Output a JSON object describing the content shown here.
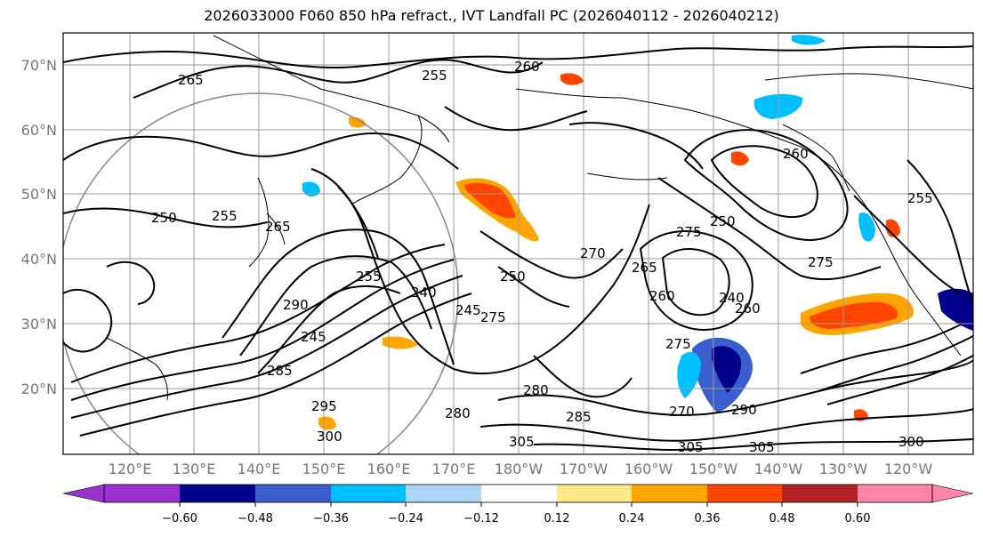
{
  "title": "2026033000 F060 850 hPa refract., IVT Landfall PC (2026040112 - 2026040212)",
  "latitude_labels": [
    "70°N",
    "60°N",
    "50°N",
    "40°N",
    "30°N",
    "20°N"
  ],
  "longitude_labels": [
    "120°E",
    "130°E",
    "140°E",
    "150°E",
    "160°E",
    "170°E",
    "180°W",
    "170°W",
    "160°W",
    "150°W",
    "140°W",
    "130°W",
    "120°W"
  ],
  "contour_labels": [
    "265",
    "255",
    "260",
    "250",
    "255",
    "265",
    "270",
    "250",
    "240",
    "255",
    "245",
    "275",
    "290",
    "260",
    "265",
    "275",
    "250",
    "260",
    "275",
    "240",
    "245",
    "285",
    "305",
    "295",
    "300",
    "280",
    "285",
    "290",
    "270",
    "305",
    "300",
    "305",
    "260",
    "255",
    "275",
    "280"
  ],
  "colorbar": {
    "colors": [
      "#9932cc",
      "#00008b",
      "#3a5fcd",
      "#00bfff",
      "#add8f5",
      "#ffffff",
      "#ffe88a",
      "#ffa500",
      "#ff4500",
      "#b22222",
      "#ff85a8"
    ],
    "tick_labels": [
      "−0.60",
      "−0.48",
      "−0.36",
      "−0.24",
      "−0.12",
      "0.12",
      "0.24",
      "0.36",
      "0.48",
      "0.60"
    ]
  },
  "colors": {
    "contour": "#000000",
    "grid": "#999999",
    "frame": "#000000"
  }
}
